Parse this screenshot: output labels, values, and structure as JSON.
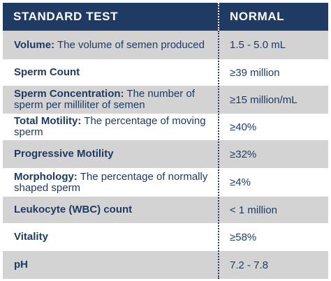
{
  "header": {
    "test_label": "STANDARD TEST",
    "normal_label": "NORMAL"
  },
  "rows": [
    {
      "name": "Volume:",
      "description": "The volume of semen produced",
      "normal": "1.5 - 5.0 mL"
    },
    {
      "name": "Sperm Count",
      "description": "",
      "normal": "≥39 million"
    },
    {
      "name": "Sperm Concentration:",
      "description": "The number of sperm per milliliter of semen",
      "normal": "≥15 million/mL"
    },
    {
      "name": "Total Motility:",
      "description": "The percentage of moving sperm",
      "normal": "≥40%"
    },
    {
      "name": "Progressive Motility",
      "description": "",
      "normal": "≥32%"
    },
    {
      "name": "Morphology:",
      "description": "The percentage of normally shaped sperm",
      "normal": "≥4%"
    },
    {
      "name": "Leukocyte (WBC) count",
      "description": "",
      "normal": "< 1 million"
    },
    {
      "name": "Vitality",
      "description": "",
      "normal": "≥58%"
    },
    {
      "name": "pH",
      "description": "",
      "normal": "7.2 - 7.8"
    }
  ],
  "colors": {
    "header_bg": "#1f3a63",
    "row_shaded": "#d3d3d3",
    "row_plain": "#ffffff",
    "text": "#1f3a63"
  }
}
